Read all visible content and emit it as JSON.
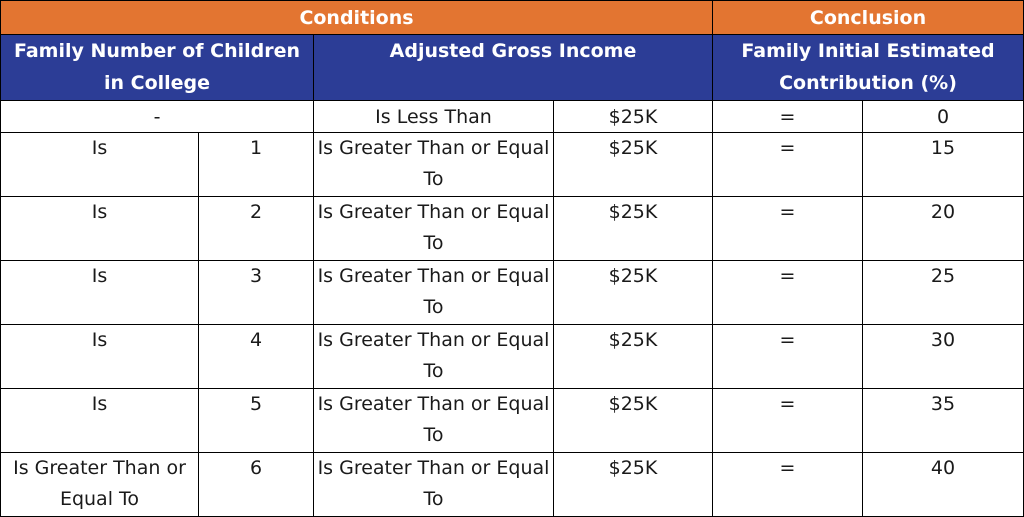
{
  "header": {
    "conditions": "Conditions",
    "conclusion": "Conclusion",
    "col_children": "Family Number of Children in College",
    "col_income": "Adjusted Gross Income",
    "col_contribution": "Family Initial Estimated Contribution (%)"
  },
  "colors": {
    "orange_header": "#e37531",
    "blue_header": "#2c3d96"
  },
  "row0": {
    "children": "-",
    "operator": "Is Less Than",
    "income": "$25K",
    "equals": "=",
    "contribution": "0"
  },
  "rows": [
    {
      "children_op": "Is",
      "children_num": "1",
      "operator": "Is Greater Than or Equal To",
      "income": "$25K",
      "equals": "=",
      "contribution": "15"
    },
    {
      "children_op": "Is",
      "children_num": "2",
      "operator": "Is Greater Than or Equal To",
      "income": "$25K",
      "equals": "=",
      "contribution": "20"
    },
    {
      "children_op": "Is",
      "children_num": "3",
      "operator": "Is Greater Than or Equal To",
      "income": "$25K",
      "equals": "=",
      "contribution": "25"
    },
    {
      "children_op": "Is",
      "children_num": "4",
      "operator": "Is Greater Than or Equal To",
      "income": "$25K",
      "equals": "=",
      "contribution": "30"
    },
    {
      "children_op": "Is",
      "children_num": "5",
      "operator": "Is Greater Than or Equal To",
      "income": "$25K",
      "equals": "=",
      "contribution": "35"
    },
    {
      "children_op": "Is Greater Than or Equal To",
      "children_num": "6",
      "operator": "Is Greater Than or Equal To",
      "income": "$25K",
      "equals": "=",
      "contribution": "40"
    }
  ]
}
